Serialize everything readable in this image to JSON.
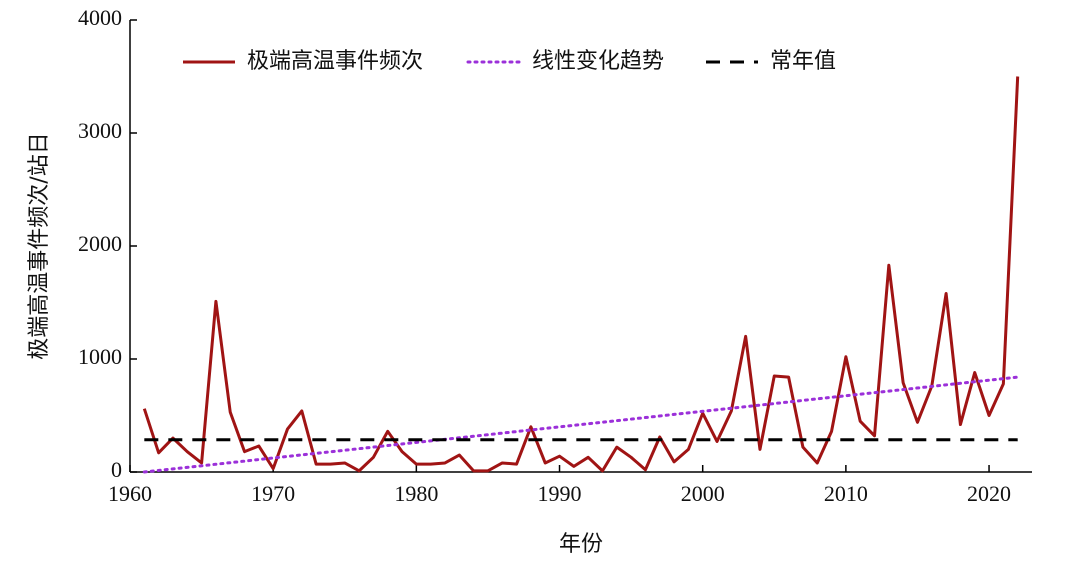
{
  "chart_data": {
    "type": "line",
    "xlabel": "年份",
    "ylabel": "极端高温事件频次/站日",
    "xlim": [
      1960,
      2023
    ],
    "xticks": [
      1960,
      1970,
      1980,
      1990,
      2000,
      2010,
      2020
    ],
    "ylim": [
      0,
      4000
    ],
    "yticks": [
      0,
      1000,
      2000,
      3000,
      4000
    ],
    "legend": "top-left",
    "series": [
      {
        "name": "极端高温事件频次",
        "color": "#a01414",
        "style": "solid",
        "x": [
          1961,
          1962,
          1963,
          1964,
          1965,
          1966,
          1967,
          1968,
          1969,
          1970,
          1971,
          1972,
          1973,
          1974,
          1975,
          1976,
          1977,
          1978,
          1979,
          1980,
          1981,
          1982,
          1983,
          1984,
          1985,
          1986,
          1987,
          1988,
          1989,
          1990,
          1991,
          1992,
          1993,
          1994,
          1995,
          1996,
          1997,
          1998,
          1999,
          2000,
          2001,
          2002,
          2003,
          2004,
          2005,
          2006,
          2007,
          2008,
          2009,
          2010,
          2011,
          2012,
          2013,
          2014,
          2015,
          2016,
          2017,
          2018,
          2019,
          2020,
          2021,
          2022
        ],
        "values": [
          560,
          170,
          300,
          180,
          80,
          1510,
          530,
          180,
          230,
          30,
          380,
          540,
          70,
          70,
          80,
          10,
          130,
          360,
          180,
          70,
          70,
          80,
          150,
          10,
          10,
          80,
          70,
          400,
          80,
          140,
          50,
          130,
          10,
          220,
          130,
          20,
          310,
          90,
          200,
          520,
          270,
          540,
          1200,
          200,
          850,
          840,
          220,
          80,
          360,
          1020,
          450,
          320,
          1830,
          790,
          440,
          760,
          1580,
          420,
          880,
          500,
          780,
          3500
        ]
      },
      {
        "name": "线性变化趋势",
        "color": "#9b30d9",
        "style": "dotted",
        "x": [
          1961,
          2022
        ],
        "values": [
          0,
          840
        ]
      },
      {
        "name": "常年值",
        "color": "#000000",
        "style": "dashed",
        "x": [
          1961,
          2022
        ],
        "values": [
          285,
          285
        ]
      }
    ]
  }
}
